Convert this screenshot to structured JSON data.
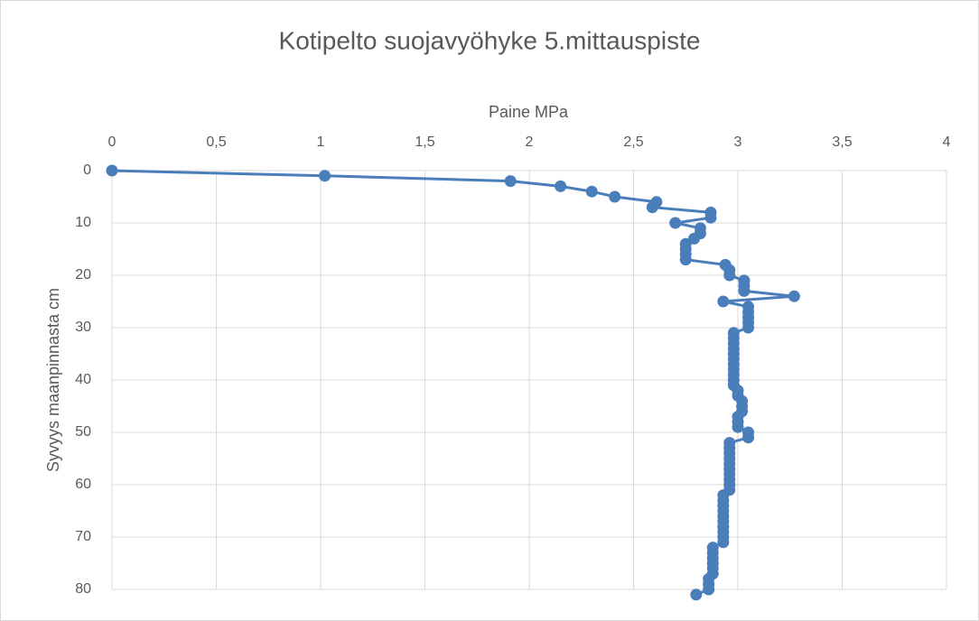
{
  "chart_data": {
    "type": "scatter",
    "title": "Kotipelto suojavyöhyke 5.mittauspiste",
    "xlabel": "Paine MPa",
    "ylabel": "Syvyys maanpinnasta cm",
    "color": "#4a7ebb",
    "x": [
      0,
      1.02,
      1.91,
      2.15,
      2.3,
      2.41,
      2.61,
      2.59,
      2.87,
      2.87,
      2.7,
      2.82,
      2.82,
      2.79,
      2.75,
      2.75,
      2.75,
      2.75,
      2.94,
      2.96,
      2.96,
      3.03,
      3.03,
      3.03,
      3.27,
      2.93,
      3.05,
      3.05,
      3.05,
      3.05,
      3.05,
      2.98,
      2.98,
      2.98,
      2.98,
      2.98,
      2.98,
      2.98,
      2.98,
      2.98,
      2.98,
      2.98,
      3.0,
      3.0,
      3.02,
      3.02,
      3.02,
      3.0,
      3.0,
      3.0,
      3.05,
      3.05,
      2.96,
      2.96,
      2.96,
      2.96,
      2.96,
      2.96,
      2.96,
      2.96,
      2.96,
      2.96,
      2.93,
      2.93,
      2.93,
      2.93,
      2.93,
      2.93,
      2.93,
      2.93,
      2.93,
      2.93,
      2.88,
      2.88,
      2.88,
      2.88,
      2.88,
      2.88,
      2.86,
      2.86,
      2.86,
      2.8
    ],
    "y": [
      0,
      1,
      2,
      3,
      4,
      5,
      6,
      7,
      8,
      9,
      10,
      11,
      12,
      13,
      14,
      15,
      16,
      17,
      18,
      19,
      20,
      21,
      22,
      23,
      24,
      25,
      26,
      27,
      28,
      29,
      30,
      31,
      32,
      33,
      34,
      35,
      36,
      37,
      38,
      39,
      40,
      41,
      42,
      43,
      44,
      45,
      46,
      47,
      48,
      49,
      50,
      51,
      52,
      53,
      54,
      55,
      56,
      57,
      58,
      59,
      60,
      61,
      62,
      63,
      64,
      65,
      66,
      67,
      68,
      69,
      70,
      71,
      72,
      73,
      74,
      75,
      76,
      77,
      78,
      79,
      80,
      81
    ],
    "xlim": [
      0,
      4
    ],
    "xticks": [
      0,
      {
        "value": 0.5,
        "label": "0,5"
      },
      1,
      {
        "value": 1.5,
        "label": "1,5"
      },
      2,
      {
        "value": 2.5,
        "label": "2,5"
      },
      3,
      {
        "value": 3.5,
        "label": "3,5"
      },
      4
    ],
    "ylim": [
      0,
      80
    ],
    "yticks": [
      0,
      10,
      20,
      30,
      40,
      50,
      60,
      70,
      80
    ],
    "y_inverted": true,
    "x_axis_position": "top",
    "grid": true
  }
}
